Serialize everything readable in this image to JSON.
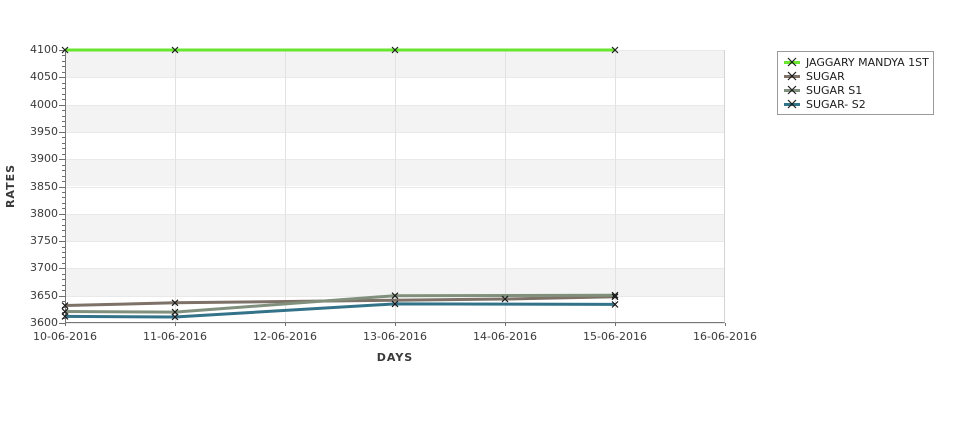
{
  "chart_data": {
    "type": "line",
    "title": "",
    "xlabel": "DAYS",
    "ylabel": "RATES",
    "x_categories": [
      "10-06-2016",
      "11-06-2016",
      "12-06-2016",
      "13-06-2016",
      "14-06-2016",
      "15-06-2016",
      "16-06-2016"
    ],
    "ylim": [
      3600,
      4100
    ],
    "ytick_step": 50,
    "ytick_minor_step": 10,
    "band_color": "#f3f3f3",
    "grid": "on",
    "legend_position": "outside-top-right",
    "marker": "x",
    "marker_color": "#1c1c1c",
    "series": [
      {
        "name": "JAGGARY MANDYA 1ST",
        "color": "#68e52f",
        "width": 3,
        "points": [
          {
            "x": 0,
            "y": 4100
          },
          {
            "x": 1,
            "y": 4100
          },
          {
            "x": 3,
            "y": 4100
          },
          {
            "x": 5,
            "y": 4100
          }
        ]
      },
      {
        "name": "SUGAR",
        "color": "#7d7168",
        "width": 3,
        "points": [
          {
            "x": 0,
            "y": 3632
          },
          {
            "x": 1,
            "y": 3637
          },
          {
            "x": 4,
            "y": 3644
          },
          {
            "x": 5,
            "y": 3648
          }
        ]
      },
      {
        "name": "SUGAR S1",
        "color": "#80907c",
        "width": 3,
        "points": [
          {
            "x": 0,
            "y": 3621
          },
          {
            "x": 1,
            "y": 3620
          },
          {
            "x": 3,
            "y": 3650
          },
          {
            "x": 5,
            "y": 3651
          }
        ]
      },
      {
        "name": "SUGAR- S2",
        "color": "#337389",
        "width": 3,
        "points": [
          {
            "x": 0,
            "y": 3612
          },
          {
            "x": 1,
            "y": 3611
          },
          {
            "x": 3,
            "y": 3635
          },
          {
            "x": 5,
            "y": 3634
          }
        ]
      }
    ]
  }
}
